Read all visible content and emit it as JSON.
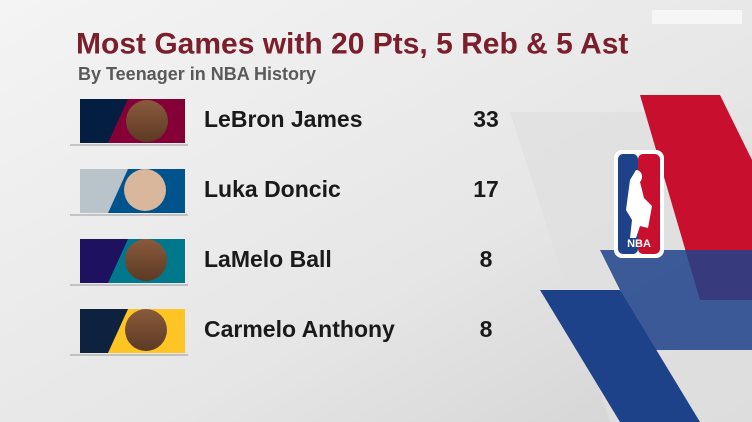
{
  "header": {
    "title": "Most Games with 20 Pts, 5 Reb & 5 Ast",
    "subtitle": "By Teenager in NBA History"
  },
  "table": {
    "rows": [
      {
        "player": "LeBron James",
        "games": 33
      },
      {
        "player": "Luka Doncic",
        "games": 17
      },
      {
        "player": "LaMelo Ball",
        "games": 8
      },
      {
        "player": "Carmelo Anthony",
        "games": 8
      }
    ]
  },
  "logo": {
    "label": "NBA"
  }
}
